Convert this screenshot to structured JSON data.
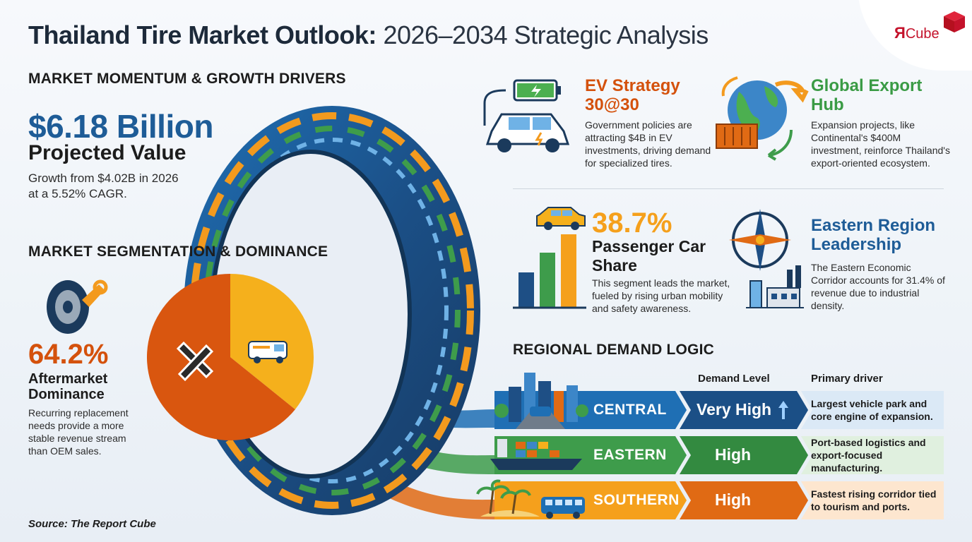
{
  "title": {
    "bold": "Thailand Tire Market Outlook:",
    "light": "2026–2034 Strategic Analysis"
  },
  "logo": {
    "letter": "Я",
    "word": "Cube",
    "color": "#c4122b"
  },
  "momentum": {
    "heading": "MARKET MOMENTUM & GROWTH DRIVERS",
    "value": "$6.18 Billion",
    "value_label": "Projected Value",
    "description": "Growth from $4.02B in 2026 at a 5.52% CAGR."
  },
  "segmentation": {
    "heading": "MARKET SEGMENTATION & DOMINANCE",
    "percent": "64.2%",
    "label": "Aftermarket Dominance",
    "description": "Recurring replacement needs provide a more stable revenue stream than OEM sales.",
    "pie": {
      "aftermarket_share": 64.2,
      "oem_share": 35.8,
      "aftermarket_color": "#d9560f",
      "oem_color": "#f5b01c"
    }
  },
  "ev_strategy": {
    "title": "EV Strategy 30@30",
    "description": "Government policies are attracting $4B in EV investments, driving demand for specialized tires."
  },
  "export_hub": {
    "title": "Global Export Hub",
    "description": "Expansion projects, like Continental's $400M investment, reinforce Thailand's export-oriented ecosystem."
  },
  "passenger": {
    "percent": "38.7%",
    "label": "Passenger Car Share",
    "description": "This segment leads the market, fueled by rising urban mobility and safety awareness."
  },
  "eastern_leadership": {
    "title": "Eastern Region Leadership",
    "description": "The Eastern Economic Corridor accounts for 31.4% of revenue due to industrial density."
  },
  "regional": {
    "heading": "REGIONAL DEMAND LOGIC",
    "col_level": "Demand Level",
    "col_driver": "Primary driver",
    "rows": [
      {
        "region": "CENTRAL",
        "level": "Very High",
        "driver": "Largest vehicle park and core engine of expansion.",
        "color": "#1f6fb4",
        "light_color": "#dbe9f6"
      },
      {
        "region": "EASTERN",
        "level": "High",
        "driver": "Port-based logistics and export-focused manufacturing.",
        "color": "#3e9c4b",
        "light_color": "#e0f0df"
      },
      {
        "region": "SOUTHERN",
        "level": "High",
        "driver": "Fastest rising corridor tied to tourism and ports.",
        "color": "#e06a14",
        "light_color": "#fde6cf"
      }
    ]
  },
  "source": "Source: The Report Cube"
}
